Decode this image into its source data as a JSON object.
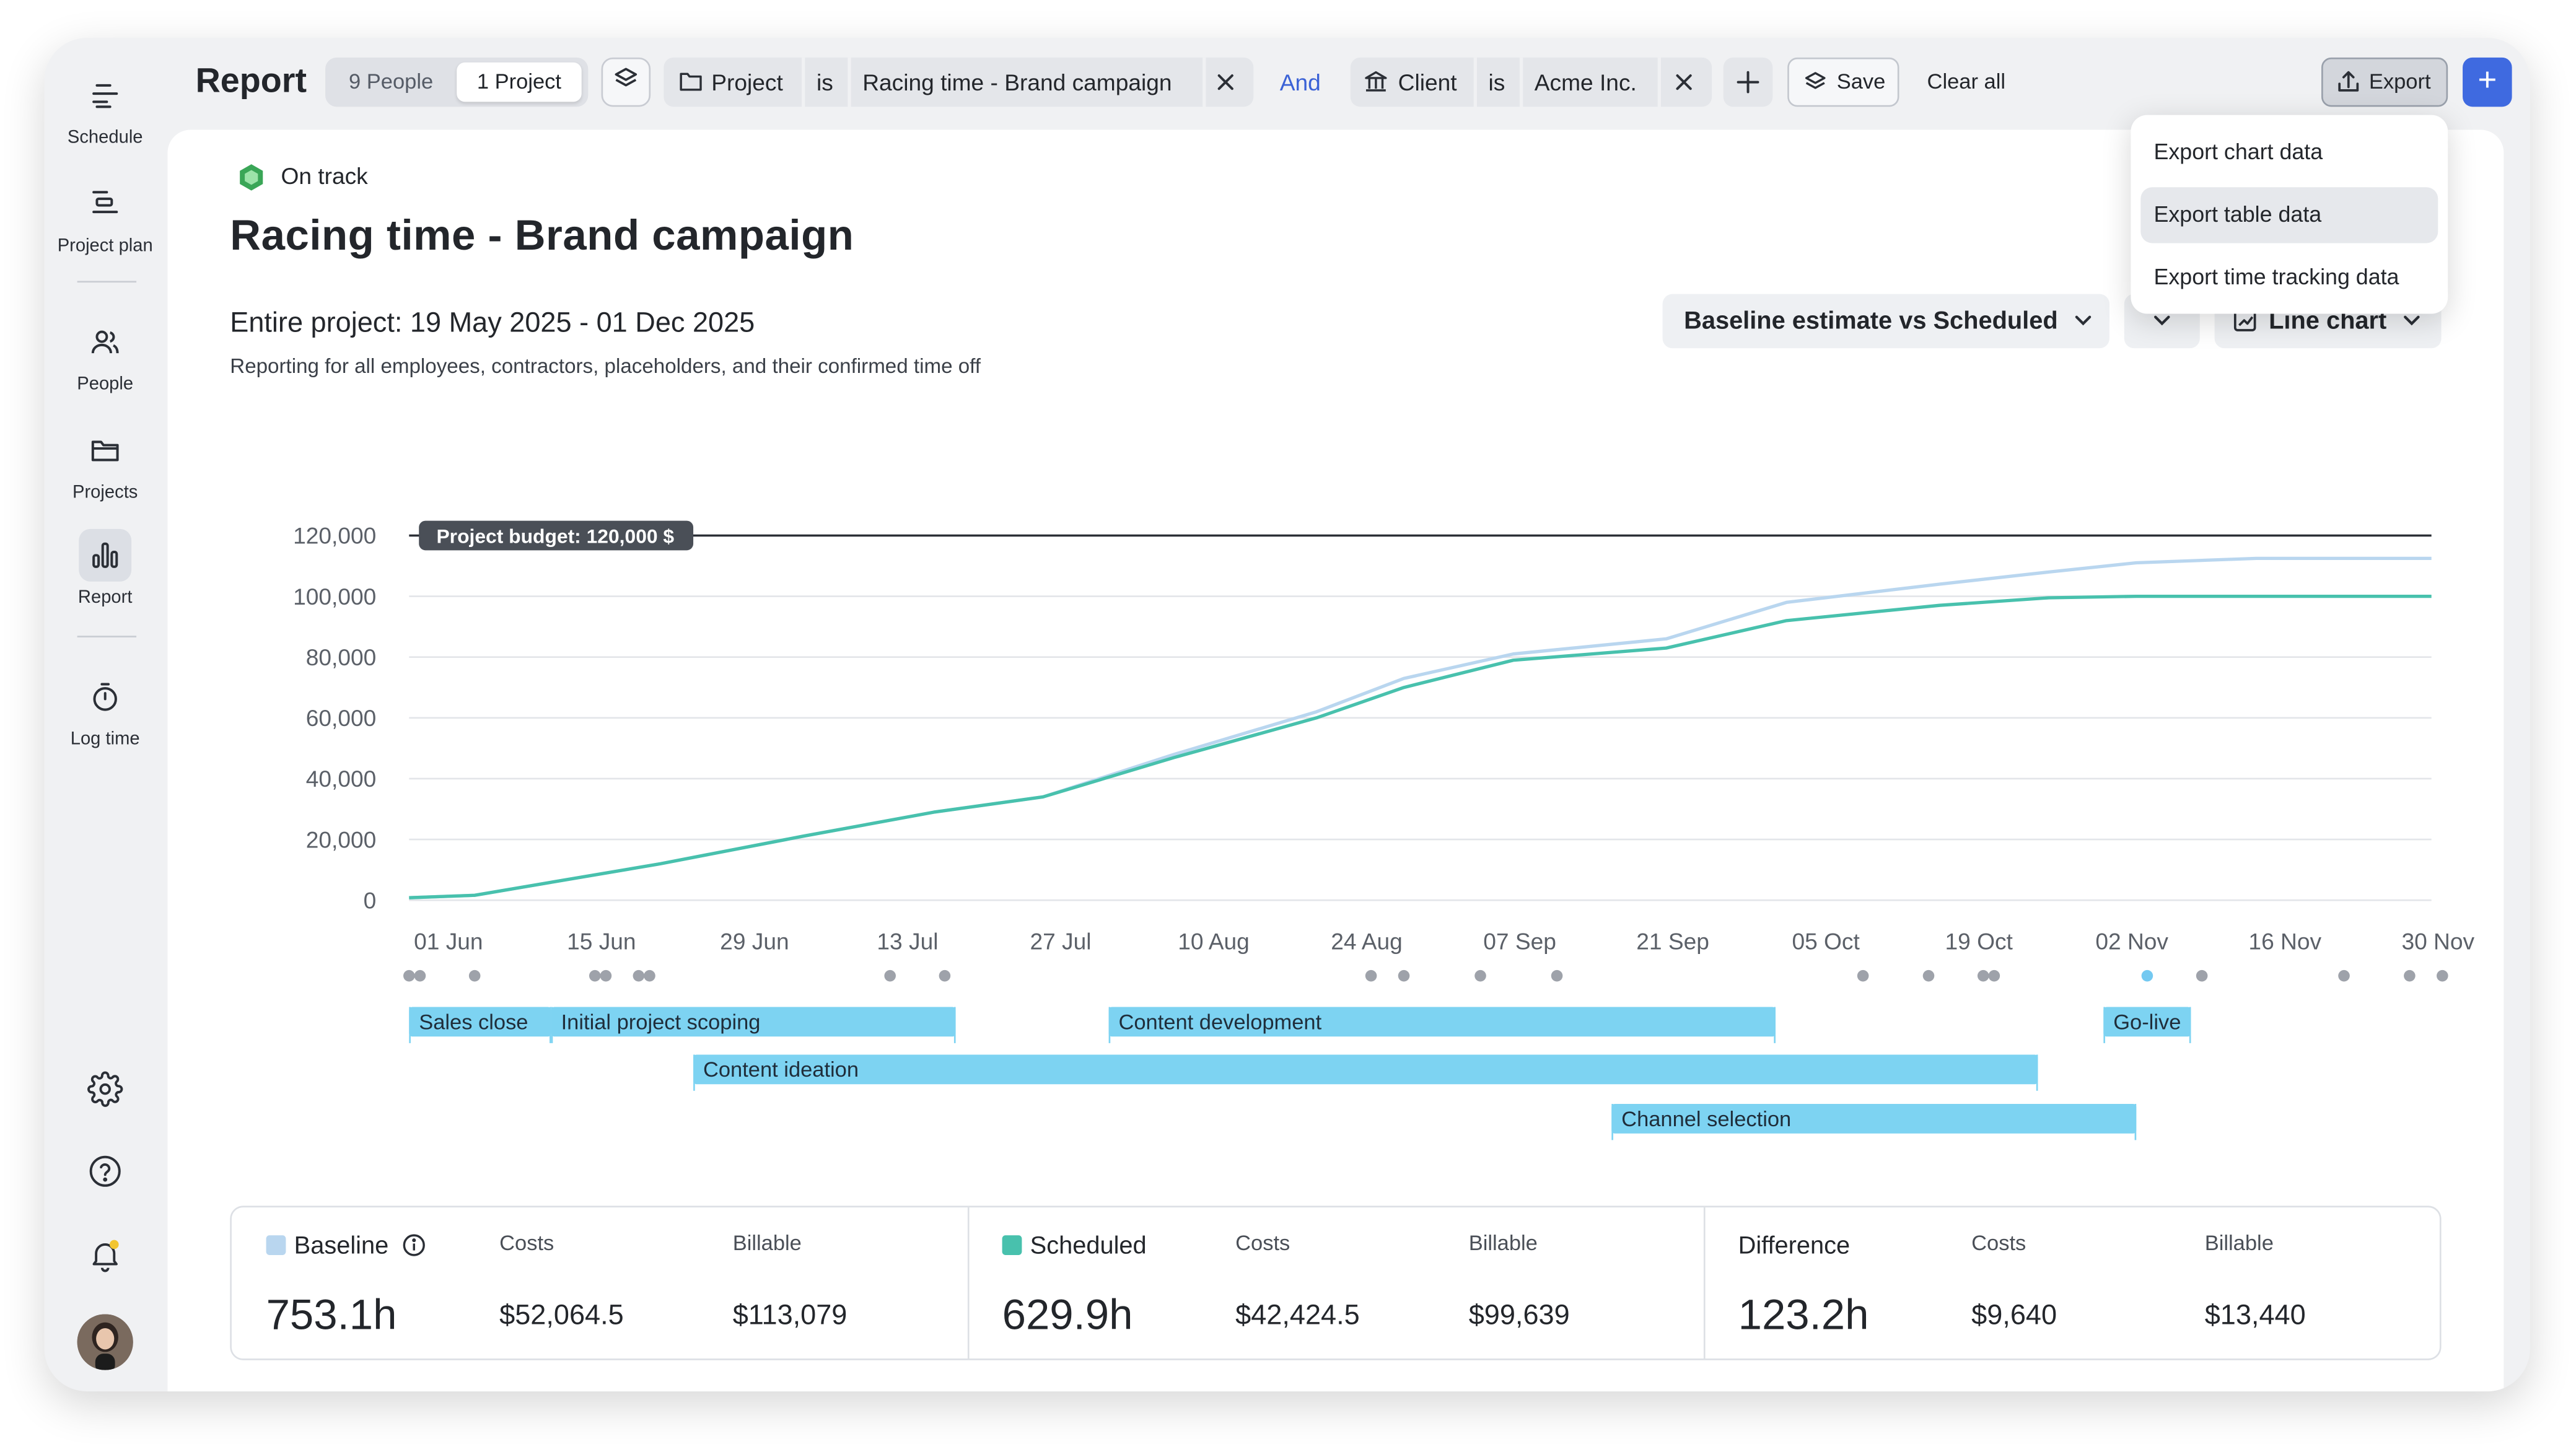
{
  "sidebar": {
    "items": [
      {
        "label": "Schedule",
        "icon": "schedule-icon"
      },
      {
        "label": "Project plan",
        "icon": "project-plan-icon"
      },
      {
        "label": "People",
        "icon": "people-icon"
      },
      {
        "label": "Projects",
        "icon": "folder-icon"
      },
      {
        "label": "Report",
        "icon": "bar-chart-icon",
        "active": true
      },
      {
        "label": "Log time",
        "icon": "stopwatch-icon"
      }
    ],
    "bottom_icons": [
      "settings-icon",
      "help-icon",
      "bell-icon",
      "avatar"
    ]
  },
  "header": {
    "title": "Report",
    "people_tab": "9 People",
    "project_tab": "1 Project",
    "filter1": {
      "field": "Project",
      "op": "is",
      "value": "Racing time - Brand campaign"
    },
    "and_label": "And",
    "filter2": {
      "field": "Client",
      "op": "is",
      "value": "Acme Inc."
    },
    "save_label": "Save",
    "clear_label": "Clear all",
    "export_label": "Export"
  },
  "export_menu": {
    "items": [
      "Export chart data",
      "Export table data",
      "Export time tracking data"
    ],
    "highlighted": 1
  },
  "project": {
    "status": "On track",
    "status_color": "#3aa657",
    "title": "Racing time - Brand campaign",
    "range_label": "Entire project: 19 May 2025 - 01 Dec 2025",
    "subtitle": "Reporting for all employees, contractors, placeholders, and their confirmed time off"
  },
  "controls": {
    "compare_label": "Baseline estimate vs Scheduled",
    "chart_type_label": "Line chart"
  },
  "chart_data": {
    "type": "line",
    "budget_label": "Project budget: 120,000 $",
    "budget_value": 120000,
    "ylim": [
      0,
      120000
    ],
    "yticks": [
      0,
      20000,
      40000,
      60000,
      80000,
      100000,
      120000
    ],
    "ytick_labels": [
      "0",
      "20,000",
      "40,000",
      "60,000",
      "80,000",
      "100,000",
      "120,000"
    ],
    "x_range_days": [
      -3,
      182
    ],
    "xticks": [
      {
        "day": 0,
        "label": "01 Jun"
      },
      {
        "day": 14,
        "label": "15 Jun"
      },
      {
        "day": 28,
        "label": "29 Jun"
      },
      {
        "day": 42,
        "label": "13 Jul"
      },
      {
        "day": 56,
        "label": "27 Jul"
      },
      {
        "day": 70,
        "label": "10 Aug"
      },
      {
        "day": 84,
        "label": "24 Aug"
      },
      {
        "day": 98,
        "label": "07 Sep"
      },
      {
        "day": 112,
        "label": "21 Sep"
      },
      {
        "day": 126,
        "label": "05 Oct"
      },
      {
        "day": 140,
        "label": "19 Oct"
      },
      {
        "day": 154,
        "label": "02 Nov"
      },
      {
        "day": 168,
        "label": "16 Nov"
      },
      {
        "day": 182,
        "label": "30 Nov"
      }
    ],
    "series": [
      {
        "name": "Baseline",
        "color": "#b9d6ef",
        "points": [
          [
            -3,
            800
          ],
          [
            3,
            1600
          ],
          [
            20,
            12000
          ],
          [
            33,
            21000
          ],
          [
            45,
            29000
          ],
          [
            55,
            34000
          ],
          [
            67,
            48000
          ],
          [
            80,
            62000
          ],
          [
            88,
            73000
          ],
          [
            98,
            81000
          ],
          [
            112,
            86000
          ],
          [
            123,
            98000
          ],
          [
            137,
            104000
          ],
          [
            147,
            108000
          ],
          [
            155,
            111000
          ],
          [
            166,
            112500
          ],
          [
            182,
            112500
          ]
        ]
      },
      {
        "name": "Scheduled",
        "color": "#48c1ad",
        "points": [
          [
            -3,
            800
          ],
          [
            3,
            1600
          ],
          [
            20,
            12000
          ],
          [
            33,
            21000
          ],
          [
            45,
            29000
          ],
          [
            55,
            34000
          ],
          [
            67,
            47000
          ],
          [
            80,
            60000
          ],
          [
            88,
            70000
          ],
          [
            98,
            79000
          ],
          [
            112,
            83000
          ],
          [
            123,
            92000
          ],
          [
            137,
            97000
          ],
          [
            147,
            99500
          ],
          [
            155,
            100000
          ],
          [
            166,
            100000
          ],
          [
            182,
            100000
          ]
        ]
      }
    ],
    "milestone_dots": [
      -3,
      -2,
      3,
      14,
      15,
      18,
      19,
      41,
      46,
      85,
      88,
      95,
      102,
      130,
      136,
      141,
      142,
      156,
      161,
      174,
      180,
      183
    ],
    "milestone_dot_highlight": 156,
    "phases": [
      {
        "name": "Sales close",
        "start": -3,
        "end": 10,
        "row": 0
      },
      {
        "name": "Initial project scoping",
        "start": 10,
        "end": 47,
        "row": 0
      },
      {
        "name": "Content development",
        "start": 61,
        "end": 122,
        "row": 0
      },
      {
        "name": "Go-live",
        "start": 152,
        "end": 160,
        "row": 0
      },
      {
        "name": "Content ideation",
        "start": 23,
        "end": 146,
        "row": 1
      },
      {
        "name": "Channel selection",
        "start": 107,
        "end": 155,
        "row": 2
      }
    ]
  },
  "summary": {
    "baseline": {
      "label": "Baseline",
      "color": "#b9d6ef",
      "hours": "753.1h",
      "costs": "$52,064.5",
      "billable": "$113,079"
    },
    "scheduled": {
      "label": "Scheduled",
      "color": "#48c1ad",
      "hours": "629.9h",
      "costs": "$42,424.5",
      "billable": "$99,639"
    },
    "difference": {
      "label": "Difference",
      "hours": "123.2h",
      "costs": "$9,640",
      "billable": "$13,440"
    },
    "costs_label": "Costs",
    "billable_label": "Billable"
  }
}
